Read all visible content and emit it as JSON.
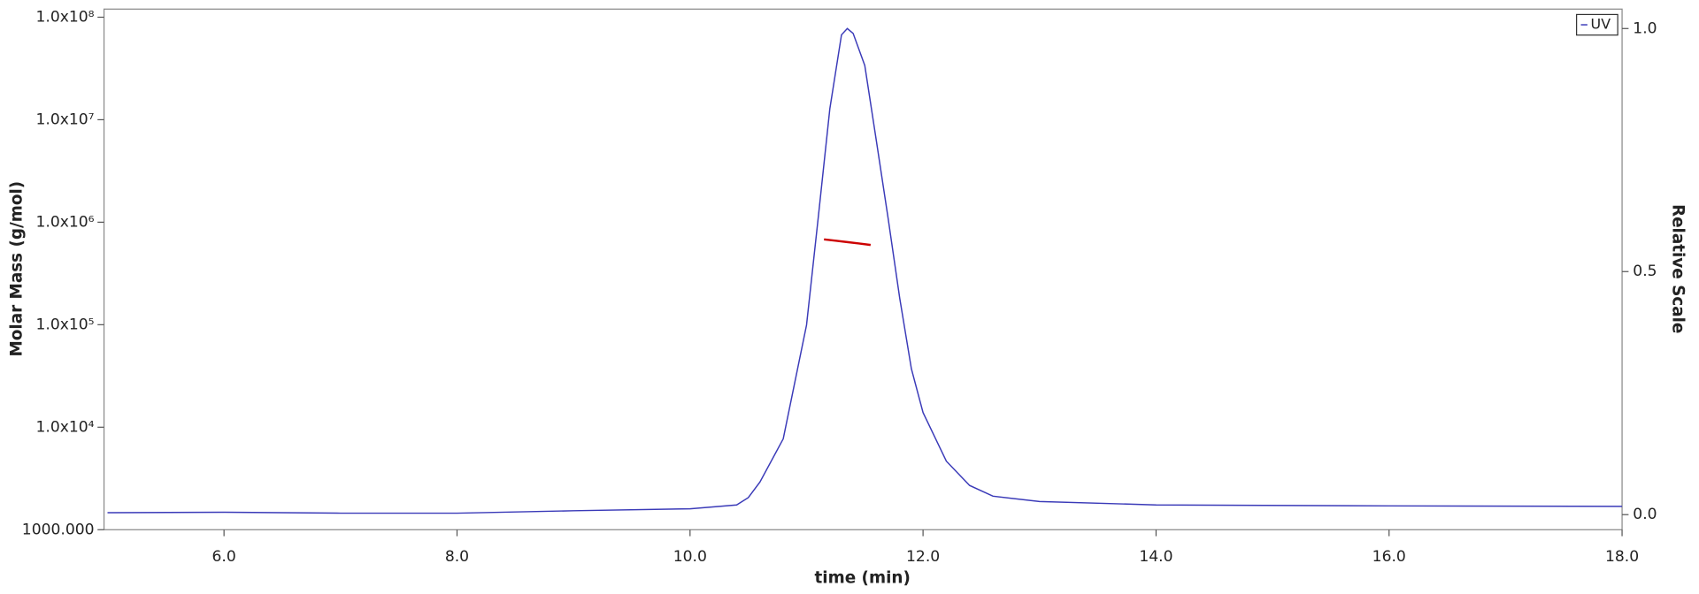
{
  "chart_data": {
    "type": "line",
    "x_label": "time (min)",
    "y_label": "Molar Mass (g/mol)",
    "y2_label": "Relative Scale",
    "xlim": [
      4.97,
      18.0
    ],
    "xticks": [
      {
        "value": 6,
        "label": "6.0"
      },
      {
        "value": 8,
        "label": "8.0"
      },
      {
        "value": 10,
        "label": "10.0"
      },
      {
        "value": 12,
        "label": "12.0"
      },
      {
        "value": 14,
        "label": "14.0"
      },
      {
        "value": 16,
        "label": "16.0"
      },
      {
        "value": 18,
        "label": "18.0"
      }
    ],
    "ylim": [
      1000,
      120000000
    ],
    "ylog": true,
    "yticks": [
      {
        "value": 1000,
        "label": "1000.000"
      },
      {
        "value": 10000,
        "label": "1.0x10⁴"
      },
      {
        "value": 100000,
        "label": "1.0x10⁵"
      },
      {
        "value": 1000000,
        "label": "1.0x10⁶"
      },
      {
        "value": 10000000,
        "label": "1.0x10⁷"
      },
      {
        "value": 100000000,
        "label": "1.0x10⁸"
      }
    ],
    "y2lim": [
      -0.031,
      1.04
    ],
    "y2ticks": [
      {
        "value": 0,
        "label": "0.0"
      },
      {
        "value": 0.5,
        "label": "0.5"
      },
      {
        "value": 1,
        "label": "1.0"
      }
    ],
    "legend": "upper right",
    "series": [
      {
        "name": "UV",
        "color": "#3a3ab8",
        "axis": "y2",
        "x": [
          5.0,
          6.0,
          7.0,
          8.0,
          9.0,
          10.0,
          10.4,
          10.5,
          10.6,
          10.8,
          11.0,
          11.1,
          11.2,
          11.3,
          11.35,
          11.4,
          11.5,
          11.6,
          11.7,
          11.8,
          11.9,
          12.0,
          12.2,
          12.4,
          12.6,
          13.0,
          14.0,
          16.0,
          18.0
        ],
        "values": [
          0.004,
          0.005,
          0.003,
          0.003,
          0.008,
          0.012,
          0.02,
          0.035,
          0.067,
          0.156,
          0.39,
          0.61,
          0.835,
          0.987,
          1.0,
          0.99,
          0.924,
          0.768,
          0.61,
          0.445,
          0.3,
          0.21,
          0.11,
          0.06,
          0.038,
          0.027,
          0.02,
          0.018,
          0.017
        ]
      },
      {
        "color": "#cc0000",
        "x": [
          11.15,
          11.25,
          11.35,
          11.45,
          11.55
        ],
        "values": [
          680000,
          660000,
          640000,
          620000,
          600000
        ]
      }
    ]
  }
}
